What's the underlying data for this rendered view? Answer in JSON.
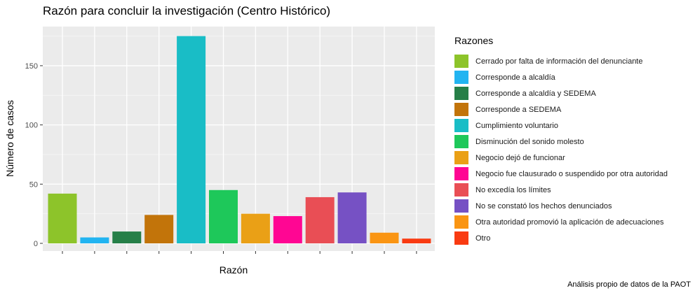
{
  "chart_data": {
    "type": "bar",
    "title": "Razón para concluir la investigación (Centro Histórico)",
    "xlabel": "Razón",
    "ylabel": "Número de casos",
    "ylim": [
      0,
      182
    ],
    "yticks": [
      0,
      50,
      100,
      150
    ],
    "grid": true,
    "legend_title": "Razones",
    "legend_position": "right",
    "caption": "Análisis propio de datos de la PAOT",
    "categories": [
      "Cerrado por falta de información del denunciante",
      "Corresponde a alcaldía",
      "Corresponde a alcaldía y SEDEMA",
      "Corresponde a SEDEMA",
      "Cumplimiento voluntario",
      "Disminución del sonido molesto",
      "Negocio dejó de funcionar",
      "Negocio fue clausurado o suspendido por otra autoridad",
      "No excedía los límites",
      "No se constató los hechos denunciados",
      "Otra autoridad promovió la aplicación de adecuaciones",
      "Otro"
    ],
    "values": [
      42,
      5,
      10,
      24,
      175,
      45,
      25,
      23,
      39,
      43,
      9,
      4
    ],
    "colors": [
      "#8DC42A",
      "#22B4F1",
      "#267F48",
      "#C2740A",
      "#19BDC6",
      "#1EC85A",
      "#EAA016",
      "#FF0693",
      "#E94E55",
      "#7651C4",
      "#FA9513",
      "#F93B12"
    ]
  }
}
